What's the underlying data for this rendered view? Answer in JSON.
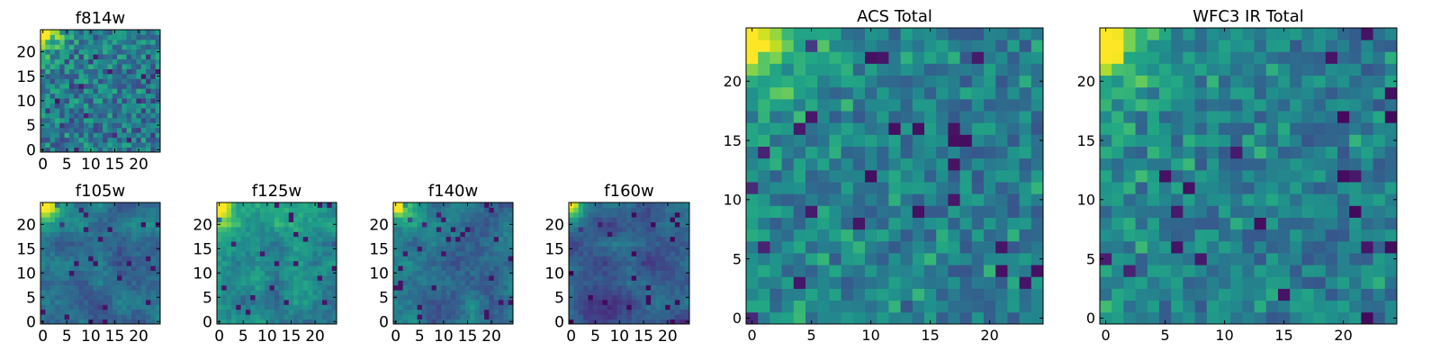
{
  "figure_title": "",
  "chart_data": [
    {
      "type": "heatmap",
      "title": "f814w",
      "colormap": "viridis",
      "xlim": [
        -0.5,
        24.5
      ],
      "ylim": [
        -0.5,
        24.5
      ],
      "xticks": [
        0,
        5,
        10,
        15,
        20
      ],
      "yticks": [
        0,
        5,
        10,
        15,
        20
      ],
      "hotspot": "top-left",
      "style": "fine-noise"
    },
    {
      "type": "heatmap",
      "title": "f105w",
      "colormap": "viridis",
      "xlim": [
        -0.5,
        24.5
      ],
      "ylim": [
        -0.5,
        24.5
      ],
      "xticks": [
        0,
        5,
        10,
        15,
        20
      ],
      "yticks": [
        0,
        5,
        10,
        15,
        20
      ],
      "hotspot": "top-left",
      "style": "smooth-dark"
    },
    {
      "type": "heatmap",
      "title": "f125w",
      "colormap": "viridis",
      "xlim": [
        -0.5,
        24.5
      ],
      "ylim": [
        -0.5,
        24.5
      ],
      "xticks": [
        0,
        5,
        10,
        15,
        20
      ],
      "yticks": [
        0,
        5,
        10,
        15,
        20
      ],
      "hotspot": "top-left",
      "style": "smooth-mid"
    },
    {
      "type": "heatmap",
      "title": "f140w",
      "colormap": "viridis",
      "xlim": [
        -0.5,
        24.5
      ],
      "ylim": [
        -0.5,
        24.5
      ],
      "xticks": [
        0,
        5,
        10,
        15,
        20
      ],
      "yticks": [
        0,
        5,
        10,
        15,
        20
      ],
      "hotspot": "top-left",
      "style": "smooth-dark"
    },
    {
      "type": "heatmap",
      "title": "f160w",
      "colormap": "viridis",
      "xlim": [
        -0.5,
        24.5
      ],
      "ylim": [
        -0.5,
        24.5
      ],
      "xticks": [
        0,
        5,
        10,
        15,
        20
      ],
      "yticks": [
        0,
        5,
        10,
        15,
        20
      ],
      "hotspot": "top-left",
      "style": "smooth-darker"
    },
    {
      "type": "heatmap",
      "title": "ACS Total",
      "colormap": "viridis",
      "xlim": [
        -0.5,
        24.5
      ],
      "ylim": [
        -0.5,
        24.5
      ],
      "xticks": [
        0,
        5,
        10,
        15,
        20
      ],
      "yticks": [
        0,
        5,
        10,
        15,
        20
      ],
      "hotspot": "top-left",
      "style": "coarse"
    },
    {
      "type": "heatmap",
      "title": "WFC3 IR Total",
      "colormap": "viridis",
      "xlim": [
        -0.5,
        24.5
      ],
      "ylim": [
        -0.5,
        24.5
      ],
      "xticks": [
        0,
        5,
        10,
        15,
        20
      ],
      "yticks": [
        0,
        5,
        10,
        15,
        20
      ],
      "hotspot": "top-left",
      "style": "coarse"
    }
  ]
}
